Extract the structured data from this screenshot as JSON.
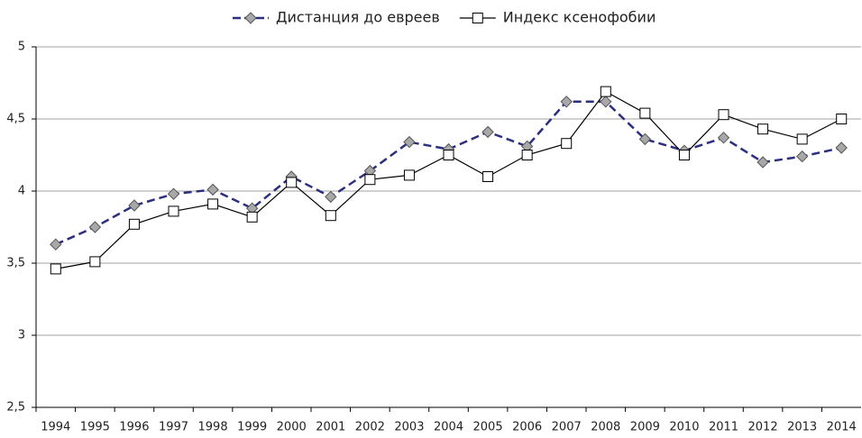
{
  "chart_data": {
    "type": "line",
    "categories": [
      "1994",
      "1995",
      "1996",
      "1997",
      "1998",
      "1999",
      "2000",
      "2001",
      "2002",
      "2003",
      "2004",
      "2005",
      "2006",
      "2007",
      "2008",
      "2009",
      "2010",
      "2011",
      "2012",
      "2013",
      "2014"
    ],
    "series": [
      {
        "name": "Дистанция до евреев",
        "color": "#2b2f7e",
        "marker": "diamond",
        "dashed": true,
        "values": [
          3.63,
          3.75,
          3.9,
          3.98,
          4.01,
          3.88,
          4.1,
          3.96,
          4.14,
          4.34,
          4.29,
          4.41,
          4.31,
          4.62,
          4.62,
          4.36,
          4.28,
          4.37,
          4.2,
          4.24,
          4.3
        ]
      },
      {
        "name": "Индекс ксенофобии",
        "color": "#000000",
        "marker": "square",
        "dashed": false,
        "values": [
          3.46,
          3.51,
          3.77,
          3.86,
          3.91,
          3.82,
          4.06,
          3.83,
          4.08,
          4.11,
          4.25,
          4.1,
          4.25,
          4.33,
          4.69,
          4.54,
          4.25,
          4.53,
          4.43,
          4.36,
          4.5
        ]
      }
    ],
    "ylim": [
      2.5,
      5
    ],
    "yticks": [
      {
        "value": 2.5,
        "label": "2,5"
      },
      3,
      {
        "value": 3.5,
        "label": "3,5"
      },
      4,
      {
        "value": 4.5,
        "label": "4,5"
      },
      5
    ],
    "grid": true,
    "legend": "top"
  }
}
